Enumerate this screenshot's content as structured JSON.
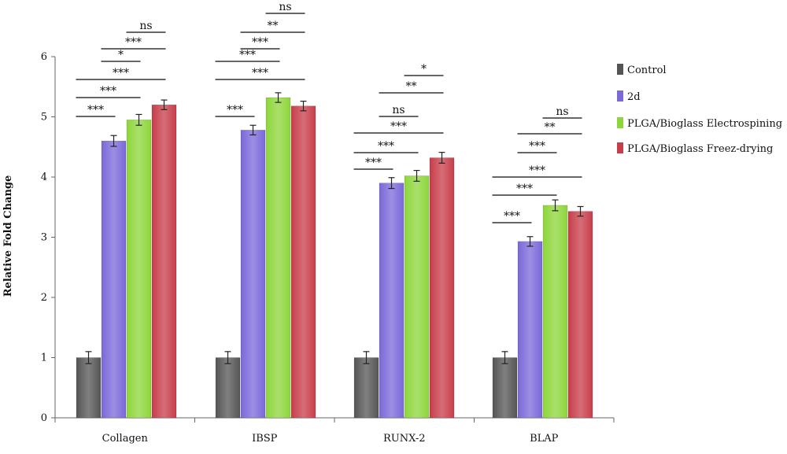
{
  "chart_data": {
    "type": "bar",
    "title": "",
    "xlabel": "",
    "ylabel": "Relative Fold Change",
    "ylim": [
      0,
      6
    ],
    "yticks": [
      "0",
      "1",
      "2",
      "3",
      "4",
      "5",
      "6"
    ],
    "grid": false,
    "legend_position": "right",
    "categories": [
      "Collagen",
      "IBSP",
      "RUNX-2",
      "BLAP"
    ],
    "series": [
      {
        "name": "Control",
        "color": "#555555",
        "values": [
          1.0,
          1.0,
          1.0,
          1.0
        ],
        "errors": [
          0.1,
          0.1,
          0.1,
          0.1
        ]
      },
      {
        "name": "2d",
        "color": "#7b68d9",
        "values": [
          4.6,
          4.78,
          3.9,
          2.93
        ],
        "errors": [
          0.09,
          0.08,
          0.09,
          0.08
        ]
      },
      {
        "name": "PLGA/Bioglass Electrospining",
        "color": "#8dd63a",
        "values": [
          4.95,
          5.32,
          4.02,
          3.53
        ],
        "errors": [
          0.09,
          0.08,
          0.09,
          0.09
        ]
      },
      {
        "name": "PLGA/Bioglass Freez-drying",
        "color": "#c73d4a",
        "values": [
          5.2,
          5.18,
          4.32,
          3.43
        ],
        "errors": [
          0.08,
          0.08,
          0.09,
          0.08
        ]
      }
    ],
    "significance": [
      {
        "category": 0,
        "from": 0,
        "to": 1,
        "label": "***"
      },
      {
        "category": 0,
        "from": 0,
        "to": 2,
        "label": "***"
      },
      {
        "category": 0,
        "from": 0,
        "to": 3,
        "label": "***"
      },
      {
        "category": 0,
        "from": 1,
        "to": 2,
        "label": "*"
      },
      {
        "category": 0,
        "from": 1,
        "to": 3,
        "label": "***"
      },
      {
        "category": 0,
        "from": 2,
        "to": 3,
        "label": "ns"
      },
      {
        "category": 1,
        "from": 0,
        "to": 1,
        "label": "***"
      },
      {
        "category": 1,
        "from": 0,
        "to": 2,
        "label": "***"
      },
      {
        "category": 1,
        "from": 0,
        "to": 3,
        "label": "***"
      },
      {
        "category": 1,
        "from": 1,
        "to": 2,
        "label": "***"
      },
      {
        "category": 1,
        "from": 1,
        "to": 3,
        "label": "**"
      },
      {
        "category": 1,
        "from": 2,
        "to": 3,
        "label": "ns"
      },
      {
        "category": 2,
        "from": 0,
        "to": 1,
        "label": "***"
      },
      {
        "category": 2,
        "from": 0,
        "to": 2,
        "label": "***"
      },
      {
        "category": 2,
        "from": 0,
        "to": 3,
        "label": "***"
      },
      {
        "category": 2,
        "from": 1,
        "to": 2,
        "label": "ns"
      },
      {
        "category": 2,
        "from": 1,
        "to": 3,
        "label": "**"
      },
      {
        "category": 2,
        "from": 2,
        "to": 3,
        "label": "*"
      },
      {
        "category": 3,
        "from": 0,
        "to": 1,
        "label": "***"
      },
      {
        "category": 3,
        "from": 0,
        "to": 2,
        "label": "***"
      },
      {
        "category": 3,
        "from": 0,
        "to": 3,
        "label": "***"
      },
      {
        "category": 3,
        "from": 1,
        "to": 2,
        "label": "***"
      },
      {
        "category": 3,
        "from": 1,
        "to": 3,
        "label": "**"
      },
      {
        "category": 3,
        "from": 2,
        "to": 3,
        "label": "ns"
      }
    ]
  }
}
